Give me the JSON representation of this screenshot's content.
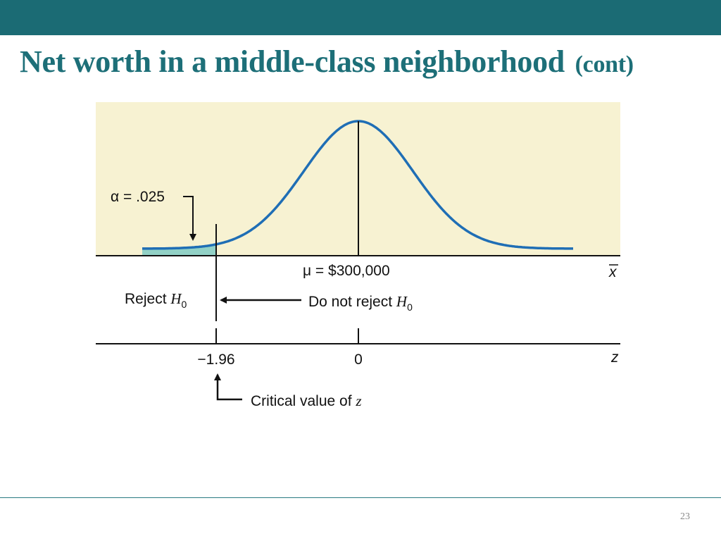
{
  "slide": {
    "title_main": "Net worth in a middle-class neighborhood",
    "title_suffix": "(cont)",
    "page_number": "23"
  },
  "colors": {
    "header_bar": "#1b6b74",
    "title": "#1d6f78",
    "panel_background": "#f7f2d2",
    "curve": "#1f6eb5",
    "shaded_tail": "#80cbc4"
  },
  "figure": {
    "alpha_label": "α = .025",
    "mu_label": "μ = $300,000",
    "xbar_axis_label": "x",
    "z_axis_label": "z",
    "reject_text": "Reject ",
    "do_not_reject_text": "Do not reject ",
    "h0_symbol": "H",
    "h0_subscript": "0",
    "z_tick_critical": "−1.96",
    "z_tick_zero": "0",
    "critical_text": "Critical value of ",
    "critical_symbol": "z"
  }
}
